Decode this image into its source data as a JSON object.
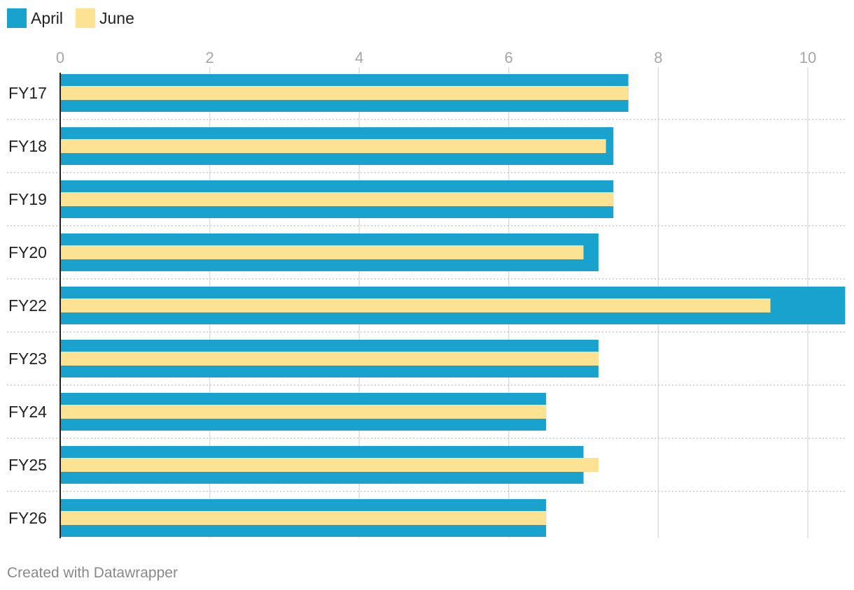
{
  "colors": {
    "april": "#1aa2cf",
    "june": "#fde293",
    "grid": "#dddddd",
    "axis": "#222222",
    "tick_text": "#a6a6a6",
    "label_text": "#222222"
  },
  "legend": {
    "items": [
      {
        "label": "April",
        "color": "#1aa2cf"
      },
      {
        "label": "June",
        "color": "#fde293"
      }
    ]
  },
  "footer": {
    "credit": "Created with Datawrapper"
  },
  "chart_data": {
    "type": "bar",
    "orientation": "horizontal",
    "layout": "overlapping",
    "categories": [
      "FY17",
      "FY18",
      "FY19",
      "FY20",
      "FY22",
      "FY23",
      "FY24",
      "FY25",
      "FY26"
    ],
    "series": [
      {
        "name": "April",
        "values": [
          7.6,
          7.4,
          7.4,
          7.2,
          10.5,
          7.2,
          6.5,
          7.0,
          6.5
        ]
      },
      {
        "name": "June",
        "values": [
          7.6,
          7.3,
          7.4,
          7.0,
          9.5,
          7.2,
          6.5,
          7.2,
          6.5
        ]
      }
    ],
    "x_ticks": [
      "0",
      "2",
      "4",
      "6",
      "8",
      "10"
    ],
    "xlim": [
      0,
      10.5
    ],
    "xaxis_position": "top",
    "grid": true,
    "legend_position": "top-left"
  }
}
